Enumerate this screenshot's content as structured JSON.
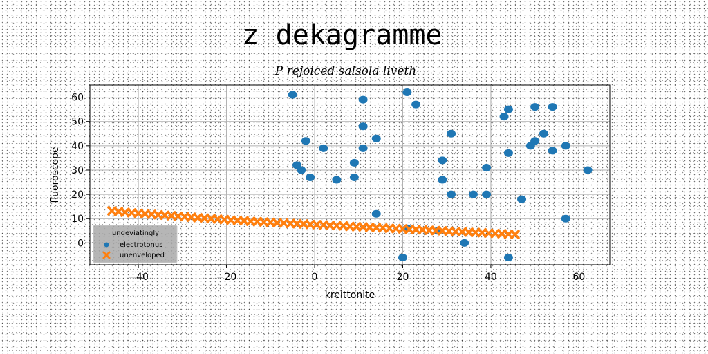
{
  "chart_data": {
    "type": "scatter",
    "title": "z dekagramme",
    "subtitle": "P rejoiced salsola liveth",
    "xlabel": "kreittonite",
    "ylabel": "fluoroscope",
    "xlim": [
      -51,
      67
    ],
    "ylim": [
      -9,
      65
    ],
    "xticks": [
      -40,
      -20,
      0,
      20,
      40,
      60
    ],
    "yticks": [
      0,
      10,
      20,
      30,
      40,
      50,
      60
    ],
    "xtick_labels": [
      "−40",
      "−20",
      "0",
      "20",
      "40",
      "60"
    ],
    "ytick_labels": [
      "0",
      "10",
      "20",
      "30",
      "40",
      "50",
      "60"
    ],
    "grid": true,
    "legend": {
      "title": "undeviatingly",
      "placement": "lower-left"
    },
    "series": [
      {
        "name": "electrotonus",
        "marker": "circle",
        "color": "#1f77b4",
        "points": [
          [
            -5,
            61
          ],
          [
            21,
            62
          ],
          [
            23,
            57
          ],
          [
            11,
            59
          ],
          [
            44,
            55
          ],
          [
            50,
            56
          ],
          [
            54,
            56
          ],
          [
            43,
            52
          ],
          [
            11,
            48
          ],
          [
            31,
            45
          ],
          [
            52,
            45
          ],
          [
            -2,
            42
          ],
          [
            14,
            43
          ],
          [
            50,
            42
          ],
          [
            49,
            40
          ],
          [
            57,
            40
          ],
          [
            2,
            39
          ],
          [
            11,
            39
          ],
          [
            44,
            37
          ],
          [
            54,
            38
          ],
          [
            29,
            34
          ],
          [
            9,
            33
          ],
          [
            -4,
            32
          ],
          [
            -3,
            30
          ],
          [
            39,
            31
          ],
          [
            62,
            30
          ],
          [
            -1,
            27
          ],
          [
            9,
            27
          ],
          [
            5,
            26
          ],
          [
            29,
            26
          ],
          [
            31,
            20
          ],
          [
            36,
            20
          ],
          [
            39,
            20
          ],
          [
            47,
            18
          ],
          [
            14,
            12
          ],
          [
            57,
            10
          ],
          [
            21,
            6
          ],
          [
            28,
            5
          ],
          [
            34,
            0
          ],
          [
            20,
            -6
          ],
          [
            44,
            -6
          ]
        ]
      },
      {
        "name": "unenveloped",
        "marker": "x",
        "color": "#ff7f0e",
        "points": [
          [
            -46,
            13.2
          ],
          [
            -44.5,
            12.9
          ],
          [
            -43,
            12.6
          ],
          [
            -41.5,
            12.4
          ],
          [
            -40,
            12.2
          ],
          [
            -38.5,
            12.0
          ],
          [
            -37,
            11.8
          ],
          [
            -35.5,
            11.6
          ],
          [
            -34,
            11.4
          ],
          [
            -32.5,
            11.2
          ],
          [
            -31,
            11.0
          ],
          [
            -29.5,
            10.8
          ],
          [
            -28,
            10.6
          ],
          [
            -26.5,
            10.4
          ],
          [
            -25,
            10.2
          ],
          [
            -23.5,
            10.0
          ],
          [
            -22,
            9.8
          ],
          [
            -20.5,
            9.6
          ],
          [
            -19,
            9.4
          ],
          [
            -17.5,
            9.2
          ],
          [
            -16,
            9.1
          ],
          [
            -14.5,
            8.9
          ],
          [
            -13,
            8.8
          ],
          [
            -11.5,
            8.6
          ],
          [
            -10,
            8.5
          ],
          [
            -8.5,
            8.3
          ],
          [
            -7,
            8.2
          ],
          [
            -5.5,
            8.0
          ],
          [
            -4,
            7.9
          ],
          [
            -2.5,
            7.8
          ],
          [
            -1,
            7.6
          ],
          [
            0.5,
            7.5
          ],
          [
            2,
            7.4
          ],
          [
            3.5,
            7.2
          ],
          [
            5,
            7.1
          ],
          [
            6.5,
            7.0
          ],
          [
            8,
            6.8
          ],
          [
            9.5,
            6.7
          ],
          [
            11,
            6.6
          ],
          [
            12.5,
            6.4
          ],
          [
            14,
            6.3
          ],
          [
            15.5,
            6.2
          ],
          [
            17,
            6.0
          ],
          [
            18.5,
            5.9
          ],
          [
            20,
            5.8
          ],
          [
            21.5,
            5.6
          ],
          [
            23,
            5.5
          ],
          [
            24.5,
            5.4
          ],
          [
            26,
            5.2
          ],
          [
            27.5,
            5.1
          ],
          [
            29,
            5.0
          ],
          [
            30.5,
            4.8
          ],
          [
            32,
            4.7
          ],
          [
            33.5,
            4.6
          ],
          [
            35,
            4.4
          ],
          [
            36.5,
            4.3
          ],
          [
            38,
            4.2
          ],
          [
            39.5,
            4.0
          ],
          [
            41,
            3.9
          ],
          [
            42.5,
            3.8
          ],
          [
            44,
            3.6
          ],
          [
            45.5,
            3.5
          ]
        ]
      }
    ]
  }
}
